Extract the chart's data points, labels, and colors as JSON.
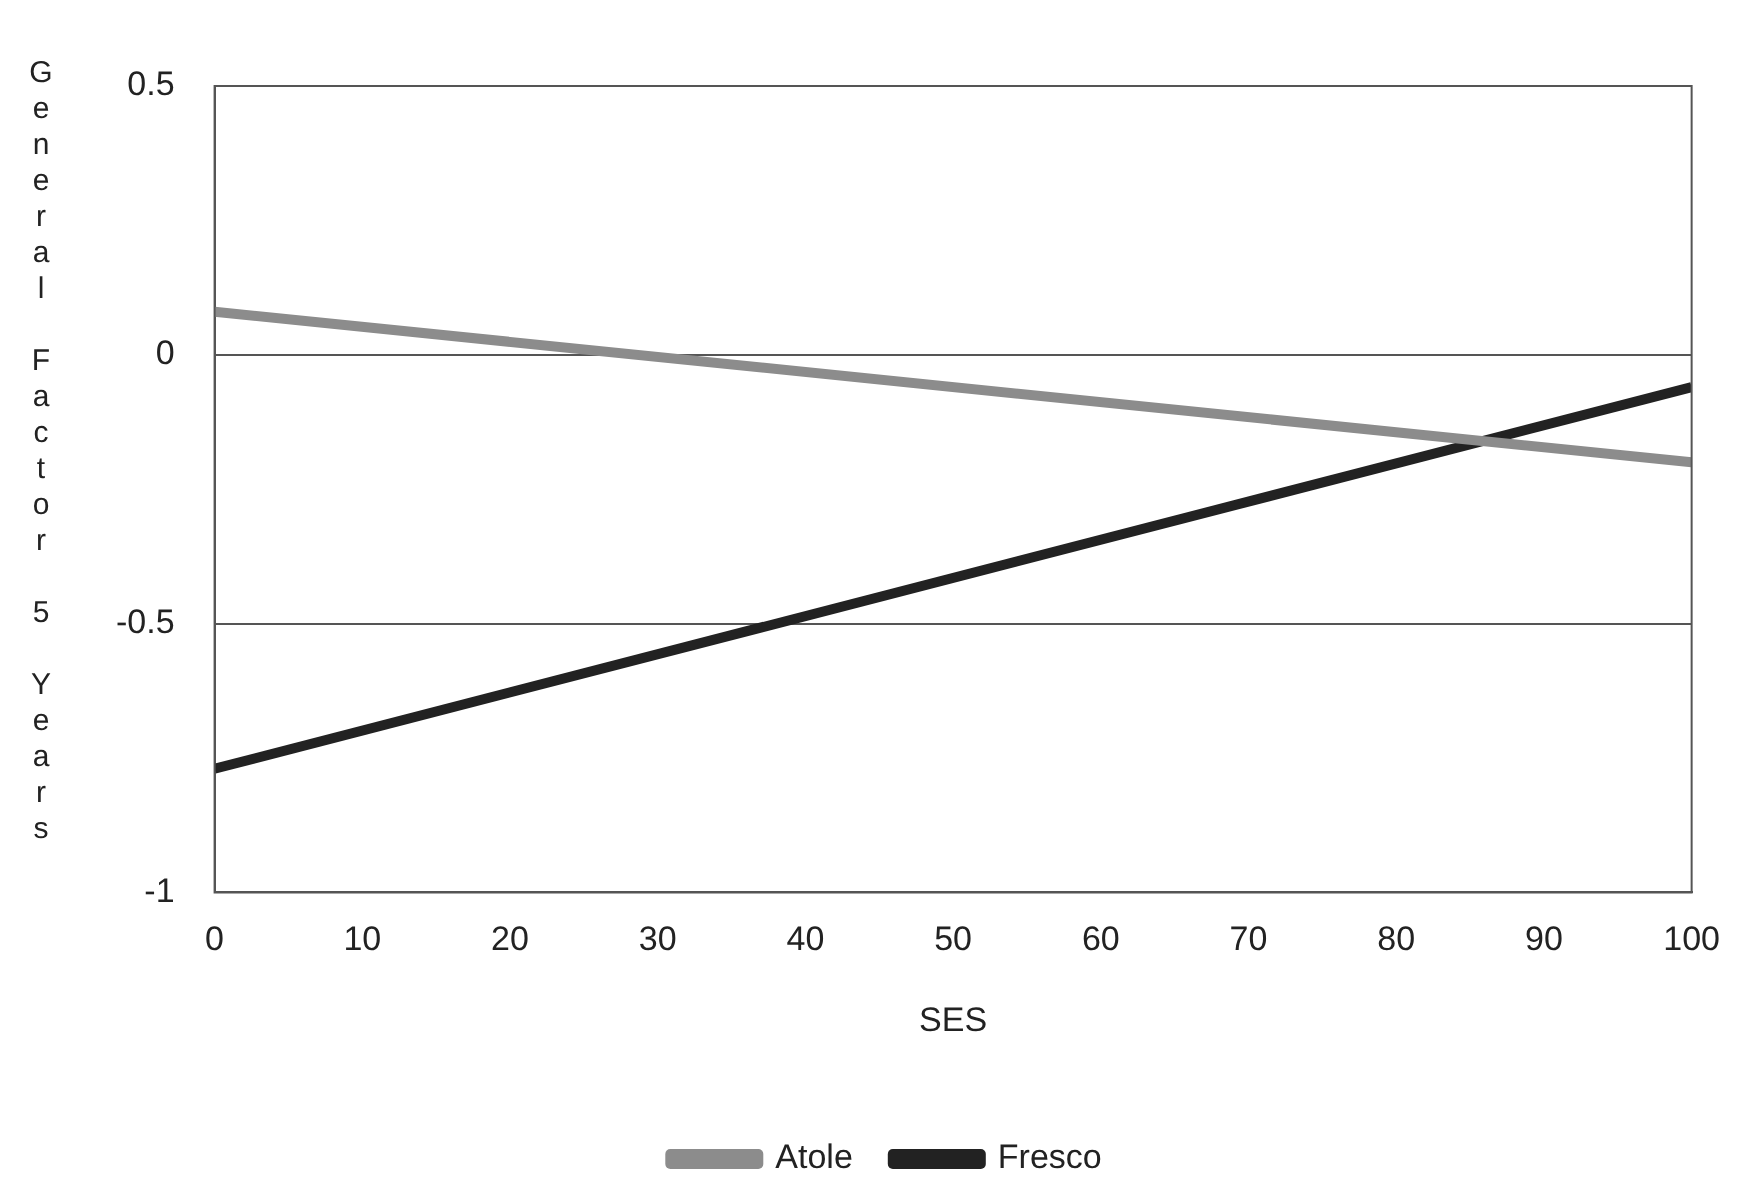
{
  "chart_data": {
    "type": "line",
    "xlabel": "SES",
    "ylabel": "General Factor 5 Years",
    "x": [
      0,
      100
    ],
    "series": [
      {
        "name": "Atole",
        "color": "#8c8c8c",
        "values": [
          0.08,
          -0.2
        ]
      },
      {
        "name": "Fresco",
        "color": "#222222",
        "values": [
          -0.77,
          -0.06
        ]
      }
    ],
    "xlim": [
      0,
      100
    ],
    "xticks": [
      0,
      10,
      20,
      30,
      40,
      50,
      60,
      70,
      80,
      90,
      100
    ],
    "ylim": [
      -1,
      0.5
    ],
    "yticks": [
      -1,
      -0.5,
      0,
      0.5
    ],
    "grid": "y",
    "legend": "bottom",
    "marker": "none",
    "line_style": "solid"
  }
}
